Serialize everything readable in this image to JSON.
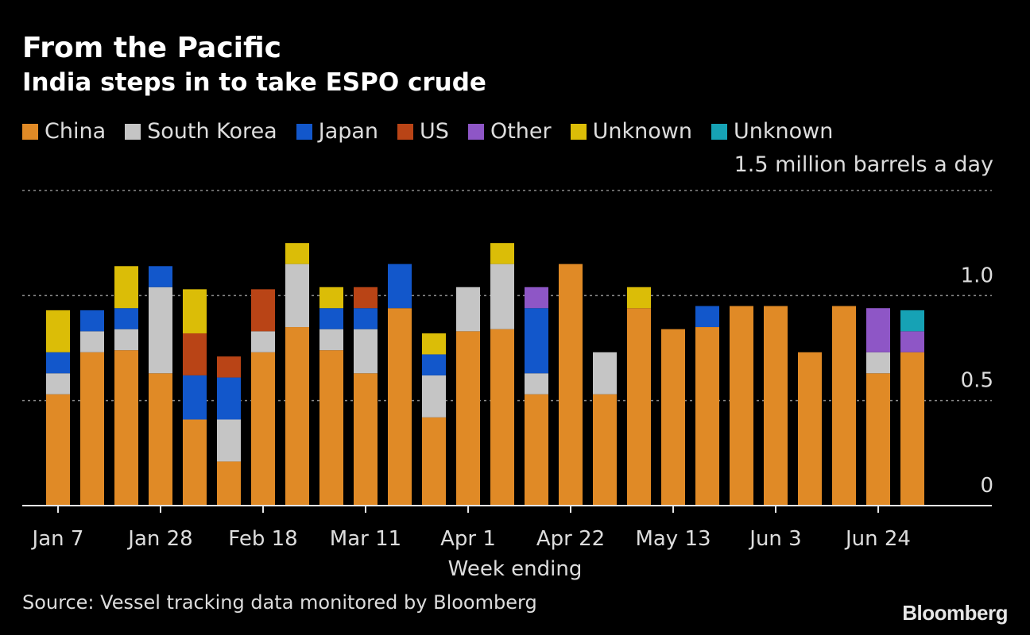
{
  "header": {
    "title": "From the Pacific",
    "subtitle": "India steps in to take ESPO crude"
  },
  "legend": [
    {
      "label": "China",
      "color": "#e08a26"
    },
    {
      "label": "South Korea",
      "color": "#c5c5c5"
    },
    {
      "label": "Japan",
      "color": "#1257cb"
    },
    {
      "label": "US",
      "color": "#b94416"
    },
    {
      "label": "Other",
      "color": "#8e56c6"
    },
    {
      "label": "Unknown",
      "color": "#dbbd07"
    },
    {
      "label": "Unknown",
      "color": "#16a2b5"
    }
  ],
  "unit_label": "1.5 million barrels a day",
  "footer": {
    "source": "Source: Vessel tracking data monitored by Bloomberg",
    "brand": "Bloomberg"
  },
  "chart_data": {
    "type": "bar",
    "stacked": true,
    "xlabel": "Week ending",
    "ylabel": "",
    "ylim": [
      0,
      1.5
    ],
    "yticks": [
      {
        "value": 0,
        "label": "0"
      },
      {
        "value": 0.5,
        "label": "0.5"
      },
      {
        "value": 1.0,
        "label": "1.0"
      },
      {
        "value": 1.5,
        "label": ""
      }
    ],
    "x_tick_labels": [
      {
        "index": 0,
        "label": "Jan 7"
      },
      {
        "index": 3,
        "label": "Jan 28"
      },
      {
        "index": 6,
        "label": "Feb 18"
      },
      {
        "index": 9,
        "label": "Mar 11"
      },
      {
        "index": 12,
        "label": "Apr 1"
      },
      {
        "index": 15,
        "label": "Apr 22"
      },
      {
        "index": 18,
        "label": "May 13"
      },
      {
        "index": 21,
        "label": "Jun 3"
      },
      {
        "index": 24,
        "label": "Jun 24"
      }
    ],
    "categories": [
      "Jan 7",
      "Jan 14",
      "Jan 21",
      "Jan 28",
      "Feb 4",
      "Feb 11",
      "Feb 18",
      "Feb 25",
      "Mar 4",
      "Mar 11",
      "Mar 18",
      "Mar 25",
      "Apr 1",
      "Apr 8",
      "Apr 15",
      "Apr 22",
      "Apr 29",
      "May 6",
      "May 13",
      "May 20",
      "May 27",
      "Jun 3",
      "Jun 10",
      "Jun 17",
      "Jun 24",
      "Jul 1"
    ],
    "series": [
      {
        "name": "China",
        "color": "#e08a26",
        "values": [
          0.53,
          0.73,
          0.74,
          0.63,
          0.41,
          0.21,
          0.73,
          0.85,
          0.74,
          0.63,
          0.94,
          0.42,
          0.83,
          0.84,
          0.53,
          1.15,
          0.53,
          0.94,
          0.84,
          0.85,
          0.95,
          0.95,
          0.73,
          0.95,
          0.63,
          0.73
        ]
      },
      {
        "name": "South Korea",
        "color": "#c5c5c5",
        "values": [
          0.1,
          0.1,
          0.1,
          0.41,
          0,
          0.2,
          0.1,
          0.3,
          0.1,
          0.21,
          0,
          0.2,
          0.21,
          0.31,
          0.1,
          0,
          0.2,
          0,
          0,
          0,
          0,
          0,
          0,
          0,
          0.1,
          0
        ]
      },
      {
        "name": "Japan",
        "color": "#1257cb",
        "values": [
          0.1,
          0.1,
          0.1,
          0.1,
          0.21,
          0.2,
          0,
          0,
          0.1,
          0.1,
          0.21,
          0.1,
          0,
          0,
          0.31,
          0,
          0,
          0,
          0,
          0.1,
          0,
          0,
          0,
          0,
          0,
          0
        ]
      },
      {
        "name": "US",
        "color": "#b94416",
        "values": [
          0,
          0,
          0,
          0,
          0.2,
          0.1,
          0.2,
          0,
          0,
          0.1,
          0,
          0,
          0,
          0,
          0,
          0,
          0,
          0,
          0,
          0,
          0,
          0,
          0,
          0,
          0,
          0
        ]
      },
      {
        "name": "Other",
        "color": "#8e56c6",
        "values": [
          0,
          0,
          0,
          0,
          0,
          0,
          0,
          0,
          0,
          0,
          0,
          0,
          0,
          0,
          0.1,
          0,
          0,
          0,
          0,
          0,
          0,
          0,
          0,
          0,
          0.21,
          0.1
        ]
      },
      {
        "name": "Unknown",
        "color": "#dbbd07",
        "values": [
          0.2,
          0,
          0.2,
          0,
          0.21,
          0,
          0,
          0.1,
          0.1,
          0,
          0,
          0.1,
          0,
          0.1,
          0,
          0,
          0,
          0.1,
          0,
          0,
          0,
          0,
          0,
          0,
          0,
          0
        ]
      },
      {
        "name": "Unknown",
        "color": "#16a2b5",
        "values": [
          0,
          0,
          0,
          0,
          0,
          0,
          0,
          0,
          0,
          0,
          0,
          0,
          0,
          0,
          0,
          0,
          0,
          0,
          0,
          0,
          0,
          0,
          0,
          0,
          0,
          0.1
        ]
      }
    ],
    "grid": true,
    "legend_position": "top-left"
  }
}
